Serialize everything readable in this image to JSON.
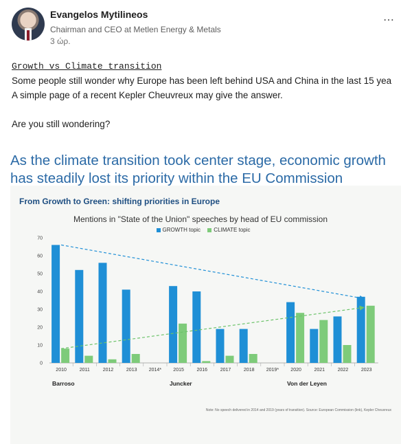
{
  "post_header": {
    "author": "Evangelos Mytilineos",
    "role": "Chairman and CEO at Metlen Energy & Metals",
    "time": "3 ώρ.",
    "more_icon": "⋯"
  },
  "post_body": {
    "title": "Growth vs Climate transition",
    "line1": "Some people still wonder why Europe has been left behind USA and China in the last 15 yea",
    "line2": "A simple page of a recent Kepler Cheuvreux may give the answer.",
    "line3": "Are you still wondering?"
  },
  "image": {
    "headline": "As the climate transition took center stage, economic growth has steadily lost its priority within the EU Commission",
    "subtitle": "From Growth to Green: shifting priorities in Europe",
    "note": "Note: No speech delivered in 2014 and 2019 (years of transition). Source: European Commission (link), Kepler Cheuvreux"
  },
  "chart_data": {
    "type": "bar",
    "title": "Mentions in \"State of the Union\" speeches by head of EU commission",
    "categories": [
      "2010",
      "2011",
      "2012",
      "2013",
      "2014*",
      "2015",
      "2016",
      "2017",
      "2018",
      "2019*",
      "2020",
      "2021",
      "2022",
      "2023"
    ],
    "series": [
      {
        "name": "GROWTH topic",
        "color": "#1f8fd6",
        "values": [
          66,
          52,
          56,
          41,
          null,
          43,
          40,
          19,
          19,
          null,
          34,
          19,
          26,
          37
        ]
      },
      {
        "name": "CLIMATE topic",
        "color": "#7ecb7a",
        "values": [
          8,
          4,
          2,
          5,
          null,
          22,
          1,
          4,
          5,
          null,
          28,
          24,
          10,
          32
        ]
      }
    ],
    "ylim": [
      0,
      70
    ],
    "yticks": [
      0,
      10,
      20,
      30,
      40,
      50,
      60,
      70
    ],
    "groups": [
      {
        "label": "Barroso",
        "start": "2010"
      },
      {
        "label": "Juncker",
        "start": "2015"
      },
      {
        "label": "Von der Leyen",
        "start": "2020"
      }
    ],
    "trend_growth": {
      "from": [
        "2010",
        66
      ],
      "to": [
        "2023",
        36
      ]
    },
    "trend_climate": {
      "from": [
        "2010",
        8
      ],
      "to": [
        "2023",
        31
      ]
    },
    "legend_position": "top-center",
    "grid": false
  }
}
